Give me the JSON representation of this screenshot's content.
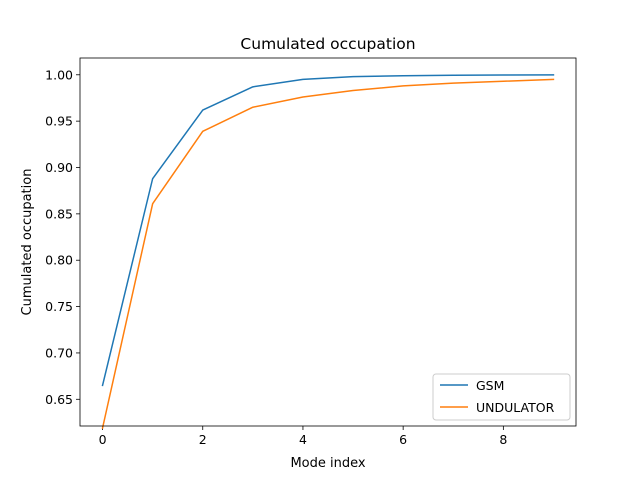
{
  "chart_data": {
    "type": "line",
    "title": "Cumulated occupation",
    "xlabel": "Mode index",
    "ylabel": "Cumulated occupation",
    "x": [
      0,
      1,
      2,
      3,
      4,
      5,
      6,
      7,
      8,
      9
    ],
    "xlim": [
      -0.45,
      9.45
    ],
    "ylim": [
      0.6212,
      1.0181
    ],
    "xticks": [
      0,
      2,
      4,
      6,
      8
    ],
    "xtick_labels": [
      "0",
      "2",
      "4",
      "6",
      "8"
    ],
    "yticks": [
      0.65,
      0.7,
      0.75,
      0.8,
      0.85,
      0.9,
      0.95,
      1.0
    ],
    "ytick_labels": [
      "0.65",
      "0.70",
      "0.75",
      "0.80",
      "0.85",
      "0.90",
      "0.95",
      "1.00"
    ],
    "grid": false,
    "legend_position": "lower-right",
    "series": [
      {
        "name": "GSM",
        "color": "#1f77b4",
        "values": [
          0.665,
          0.888,
          0.962,
          0.987,
          0.995,
          0.998,
          0.999,
          0.9995,
          0.9998,
          0.9999
        ]
      },
      {
        "name": "UNDULATOR",
        "color": "#ff7f0e",
        "values": [
          0.619,
          0.861,
          0.939,
          0.965,
          0.976,
          0.983,
          0.988,
          0.991,
          0.993,
          0.995
        ]
      }
    ]
  }
}
